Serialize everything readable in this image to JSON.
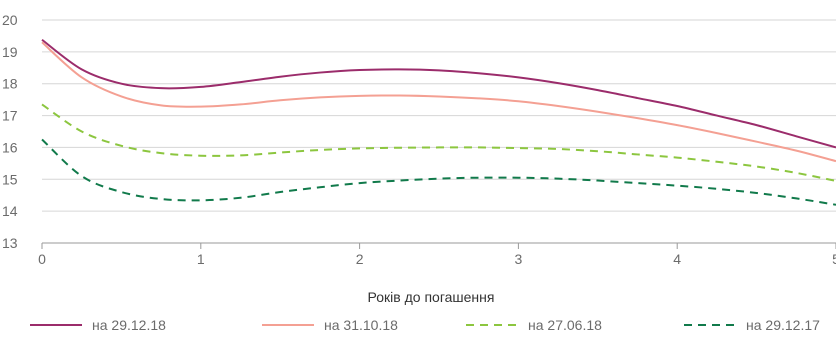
{
  "chart_data": {
    "type": "line",
    "xlabel": "Років до погашення",
    "ylabel": "",
    "xlim": [
      0,
      5
    ],
    "ylim": [
      13,
      20
    ],
    "x_ticks": [
      "0",
      "1",
      "2",
      "3",
      "4",
      "5"
    ],
    "y_ticks": [
      "13",
      "14",
      "15",
      "16",
      "17",
      "18",
      "19",
      "20"
    ],
    "grid": "horizontal",
    "legend_position": "bottom",
    "x": [
      0,
      0.25,
      0.5,
      0.75,
      1,
      1.25,
      1.5,
      1.75,
      2,
      2.25,
      2.5,
      2.75,
      3,
      3.25,
      3.5,
      3.75,
      4,
      4.25,
      4.5,
      4.75,
      5
    ],
    "series": [
      {
        "name": "на 29.12.18",
        "color": "#9b2c6b",
        "dash": "solid",
        "values": [
          19.38,
          18.45,
          18.0,
          17.86,
          17.9,
          18.05,
          18.22,
          18.35,
          18.43,
          18.45,
          18.42,
          18.33,
          18.2,
          18.02,
          17.8,
          17.55,
          17.3,
          17.0,
          16.7,
          16.35,
          16.0
        ]
      },
      {
        "name": "на 31.10.18",
        "color": "#f4a093",
        "dash": "solid",
        "values": [
          19.3,
          18.2,
          17.6,
          17.32,
          17.28,
          17.35,
          17.48,
          17.57,
          17.62,
          17.63,
          17.6,
          17.54,
          17.45,
          17.3,
          17.12,
          16.92,
          16.7,
          16.45,
          16.18,
          15.9,
          15.57
        ]
      },
      {
        "name": "на 27.06.18",
        "color": "#8cc63f",
        "dash": "dashed",
        "values": [
          17.35,
          16.5,
          16.05,
          15.82,
          15.74,
          15.75,
          15.84,
          15.92,
          15.97,
          15.99,
          16.0,
          16.0,
          15.98,
          15.95,
          15.88,
          15.78,
          15.68,
          15.55,
          15.4,
          15.2,
          14.95
        ]
      },
      {
        "name": "на 29.12.17",
        "color": "#117a4b",
        "dash": "dashed",
        "values": [
          16.25,
          15.1,
          14.6,
          14.38,
          14.34,
          14.42,
          14.6,
          14.75,
          14.88,
          14.96,
          15.02,
          15.05,
          15.05,
          15.02,
          14.96,
          14.88,
          14.8,
          14.7,
          14.57,
          14.4,
          14.2
        ]
      }
    ]
  }
}
